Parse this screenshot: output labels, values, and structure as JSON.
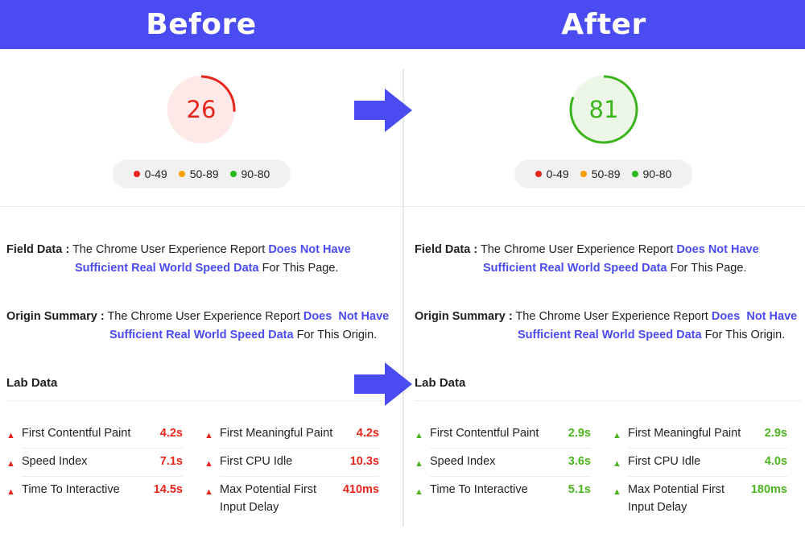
{
  "header": {
    "before_label": "Before",
    "after_label": "After"
  },
  "legend": [
    {
      "label": "0-49",
      "color": "#e8251c"
    },
    {
      "label": "50-89",
      "color": "#f5a000"
    },
    {
      "label": "90-80",
      "color": "#2ab81f"
    }
  ],
  "before": {
    "score": "26",
    "score_value": 26,
    "score_color": "#e8251c",
    "score_bg": "#fde9e8",
    "status_color": "#e8251c",
    "field_data": {
      "label": "Field Data :",
      "text1": "The Chrome User Experience Report",
      "link1": "Does Not Have",
      "link2": "Sufficient Real World Speed Data",
      "text2": "For This Page."
    },
    "origin_summary": {
      "label": "Origin Summary :",
      "text1": "The Chrome User Experience Report",
      "link1": "Does  Not Have",
      "link2": "Sufficient Real World Speed Data",
      "text2": "For This Origin."
    },
    "lab_title": "Lab Data",
    "metrics_left": [
      {
        "label": "First Contentful Paint",
        "value": "4.2s"
      },
      {
        "label": "Speed Index",
        "value": "7.1s"
      },
      {
        "label": "Time To Interactive",
        "value": "14.5s"
      }
    ],
    "metrics_right": [
      {
        "label": "First Meaningful Paint",
        "value": "4.2s"
      },
      {
        "label": "First CPU Idle",
        "value": "10.3s"
      },
      {
        "label": "Max Potential First",
        "label2": "Input Delay",
        "value": "410ms"
      }
    ]
  },
  "after": {
    "score": "81",
    "score_value": 81,
    "score_color": "#3cb51c",
    "score_bg": "#ecf7e7",
    "status_color": "#4cb51e",
    "field_data": {
      "label": "Field Data :",
      "text1": "The Chrome User Experience Report",
      "link1": "Does Not Have",
      "link2": "Sufficient Real World Speed Data",
      "text2": "For This Page."
    },
    "origin_summary": {
      "label": "Origin Summary :",
      "text1": "The Chrome User Experience Report",
      "link1": "Does  Not Have",
      "link2": "Sufficient Real World Speed Data",
      "text2": "For This Origin."
    },
    "lab_title": "Lab Data",
    "metrics_left": [
      {
        "label": "First Contentful Paint",
        "value": "2.9s"
      },
      {
        "label": "Speed Index",
        "value": "3.6s"
      },
      {
        "label": "Time To Interactive",
        "value": "5.1s"
      }
    ],
    "metrics_right": [
      {
        "label": "First Meaningful Paint",
        "value": "2.9s"
      },
      {
        "label": "First CPU Idle",
        "value": "4.0s"
      },
      {
        "label": "Max Potential First",
        "label2": "Input Delay",
        "value": "180ms"
      }
    ]
  },
  "colors": {
    "accent": "#4a4cf2"
  }
}
